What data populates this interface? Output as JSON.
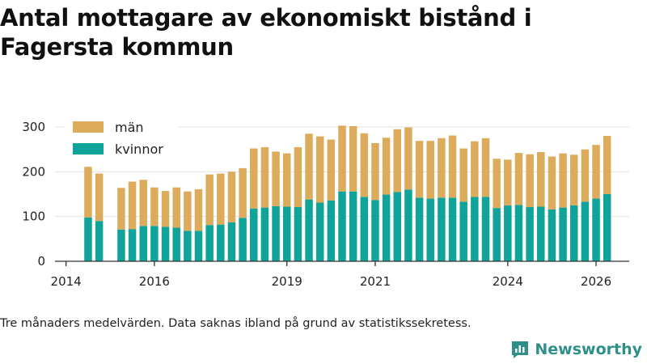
{
  "title": "Antal mottagare av ekonomiskt bistånd i Fagersta kommun",
  "note": "Tre månaders medelvärden. Data saknas ibland på grund av statistikssekretess.",
  "brand": "Newsworthy",
  "colors": {
    "men": "#dcac5c",
    "women": "#0fa39a",
    "grid": "#e2e2e2",
    "axis": "#333333",
    "brand": "#2f8f8a"
  },
  "chart_data": {
    "type": "bar",
    "stacked": true,
    "title": "Antal mottagare av ekonomiskt bistånd i Fagersta kommun",
    "xlabel": "",
    "ylabel": "",
    "ylim": [
      0,
      300
    ],
    "yticks": [
      0,
      100,
      200,
      300
    ],
    "xlim": [
      2013.75,
      2026.75
    ],
    "xticks": [
      2014,
      2016,
      2019,
      2021,
      2024,
      2026
    ],
    "legend_position": "top-left",
    "x": [
      2014.5,
      2014.75,
      2015.25,
      2015.5,
      2015.75,
      2016.0,
      2016.25,
      2016.5,
      2016.75,
      2017.0,
      2017.25,
      2017.5,
      2017.75,
      2018.0,
      2018.25,
      2018.5,
      2018.75,
      2019.0,
      2019.25,
      2019.5,
      2019.75,
      2020.0,
      2020.25,
      2020.5,
      2020.75,
      2021.0,
      2021.25,
      2021.5,
      2021.75,
      2022.0,
      2022.25,
      2022.5,
      2022.75,
      2023.0,
      2023.25,
      2023.5,
      2023.75,
      2024.0,
      2024.25,
      2024.5,
      2024.75,
      2025.0,
      2025.25,
      2025.5,
      2025.75,
      2026.0,
      2026.25
    ],
    "series": [
      {
        "name": "kvinnor",
        "values": [
          98,
          90,
          71,
          72,
          79,
          79,
          77,
          75,
          68,
          68,
          81,
          82,
          87,
          97,
          118,
          120,
          123,
          122,
          121,
          138,
          131,
          136,
          156,
          156,
          144,
          137,
          149,
          155,
          160,
          142,
          140,
          142,
          142,
          133,
          144,
          144,
          119,
          125,
          126,
          121,
          122,
          116,
          120,
          125,
          133,
          140,
          150
        ]
      },
      {
        "name": "män",
        "values": [
          113,
          106,
          93,
          106,
          103,
          86,
          80,
          90,
          88,
          93,
          113,
          114,
          113,
          111,
          134,
          135,
          122,
          119,
          134,
          147,
          148,
          136,
          147,
          146,
          142,
          127,
          127,
          140,
          139,
          127,
          129,
          133,
          139,
          119,
          124,
          131,
          110,
          102,
          116,
          118,
          122,
          118,
          121,
          113,
          117,
          120,
          130
        ]
      }
    ]
  }
}
